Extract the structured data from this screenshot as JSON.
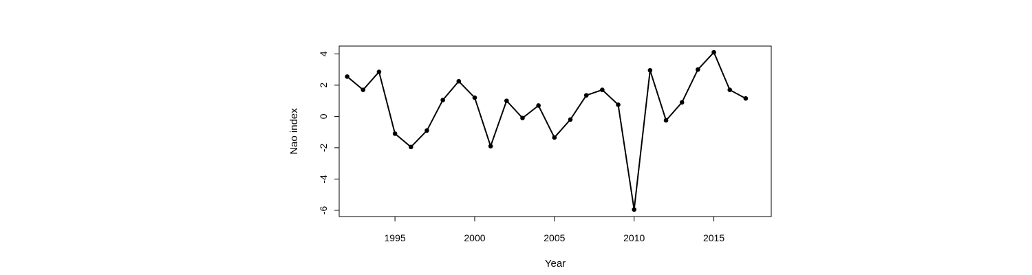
{
  "chart_data": {
    "type": "line",
    "title": "",
    "xlabel": "Year",
    "ylabel": "Nao index",
    "x": [
      1992,
      1993,
      1994,
      1995,
      1996,
      1997,
      1998,
      1999,
      2000,
      2001,
      2002,
      2003,
      2004,
      2005,
      2006,
      2007,
      2008,
      2009,
      2010,
      2011,
      2012,
      2013,
      2014,
      2015,
      2016,
      2017
    ],
    "series": [
      {
        "values": [
          2.55,
          1.7,
          2.85,
          -1.1,
          -1.95,
          -0.9,
          1.05,
          2.25,
          1.2,
          -1.9,
          1.0,
          -0.1,
          0.7,
          -1.35,
          -0.2,
          1.35,
          1.7,
          0.75,
          -5.95,
          2.95,
          -0.25,
          0.9,
          3.0,
          4.1,
          1.7,
          1.15
        ],
        "color": "#000000"
      }
    ],
    "xlim": [
      1991.5,
      2018.6
    ],
    "ylim": [
      -6.4,
      4.5
    ],
    "xticks": [
      "1995",
      "2000",
      "2005",
      "2010",
      "2015"
    ],
    "yticks": [
      "4",
      "2",
      "0",
      "-2",
      "-4",
      "-6"
    ],
    "grid": false,
    "legend": "none"
  }
}
